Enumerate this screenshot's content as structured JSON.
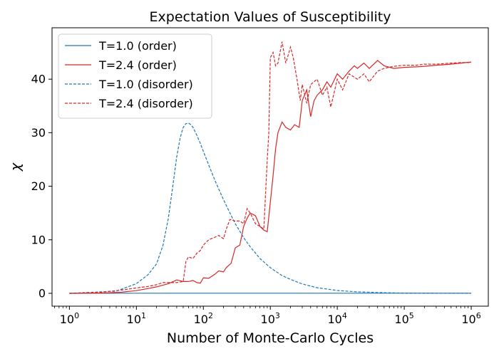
{
  "chart_data": {
    "type": "line",
    "title": "Expectation Values of Susceptibility",
    "xlabel": "Number of Monte-Carlo Cycles",
    "ylabel": "χ",
    "xscale": "log",
    "xlim": [
      0.55,
      1800000
    ],
    "ylim": [
      -2.4,
      49.6
    ],
    "xticks": [
      {
        "value": 1,
        "base": "10",
        "exp": "0"
      },
      {
        "value": 10,
        "base": "10",
        "exp": "1"
      },
      {
        "value": 100,
        "base": "10",
        "exp": "2"
      },
      {
        "value": 1000,
        "base": "10",
        "exp": "3"
      },
      {
        "value": 10000,
        "base": "10",
        "exp": "4"
      },
      {
        "value": 100000,
        "base": "10",
        "exp": "5"
      },
      {
        "value": 1000000,
        "base": "10",
        "exp": "6"
      }
    ],
    "yticks": [
      0,
      10,
      20,
      30,
      40
    ],
    "grid": false,
    "legend_position": "top-left",
    "series": [
      {
        "name": "T=1.0 (order)",
        "color": "#1f77b4",
        "dash": "solid",
        "x": [
          1,
          10,
          100,
          1000,
          10000,
          100000,
          1000000
        ],
        "y": [
          0,
          0.02,
          0.02,
          0.02,
          0.02,
          0.02,
          0.02
        ]
      },
      {
        "name": "T=2.4 (order)",
        "color": "#d62728",
        "dash": "solid",
        "x": [
          1,
          3,
          6,
          10,
          15,
          20,
          30,
          40,
          50,
          60,
          70,
          80,
          90,
          100,
          120,
          150,
          170,
          200,
          220,
          260,
          300,
          350,
          400,
          450,
          500,
          600,
          700,
          800,
          900,
          1000,
          1100,
          1200,
          1300,
          1500,
          1700,
          2000,
          2300,
          2700,
          3000,
          3500,
          4000,
          4500,
          5000,
          6000,
          7000,
          8000,
          10000,
          12000,
          15000,
          18000,
          20000,
          25000,
          30000,
          40000,
          50000,
          70000,
          100000,
          150000,
          200000,
          300000,
          500000,
          700000,
          1000000
        ],
        "y": [
          0,
          0.05,
          0.2,
          0.5,
          0.9,
          1.2,
          1.8,
          2.5,
          2.2,
          2.2,
          2.4,
          2.0,
          1.9,
          2.9,
          2.8,
          3.6,
          4.2,
          4.0,
          4.8,
          5.6,
          8.5,
          9.0,
          12.5,
          14.0,
          15.0,
          14.5,
          12.5,
          11.8,
          11.5,
          17.0,
          22.0,
          27.0,
          30.0,
          32.0,
          31.0,
          30.5,
          31.5,
          31.0,
          36.0,
          38.0,
          33.0,
          36.0,
          37.0,
          38.0,
          39.5,
          38.5,
          41.0,
          40.0,
          41.5,
          42.5,
          42.0,
          43.0,
          42.0,
          43.5,
          42.5,
          42.0,
          42.2,
          42.3,
          42.4,
          42.6,
          42.8,
          43.0,
          43.2
        ]
      },
      {
        "name": "T=1.0 (disorder)",
        "color": "#1f77b4",
        "dash": "dashed",
        "x": [
          1,
          5,
          10,
          15,
          20,
          25,
          30,
          35,
          40,
          45,
          50,
          55,
          60,
          65,
          70,
          80,
          90,
          100,
          120,
          150,
          200,
          250,
          300,
          400,
          500,
          700,
          1000,
          1500,
          2000,
          3000,
          5000,
          10000,
          20000,
          50000,
          100000,
          300000,
          1000000
        ],
        "y": [
          0,
          0.4,
          1.8,
          3.5,
          5.5,
          9.0,
          14.0,
          20.0,
          25.5,
          29.0,
          31.0,
          31.7,
          31.8,
          31.5,
          31.0,
          29.5,
          28.0,
          26.5,
          24.0,
          21.0,
          17.5,
          15.0,
          13.0,
          10.4,
          8.7,
          6.5,
          4.8,
          3.3,
          2.6,
          1.75,
          1.05,
          0.53,
          0.27,
          0.11,
          0.05,
          0.02,
          0.01
        ]
      },
      {
        "name": "T=2.4 (disorder)",
        "color": "#d62728",
        "dash": "dashed",
        "x": [
          1,
          3,
          6,
          10,
          15,
          20,
          25,
          30,
          40,
          50,
          55,
          60,
          70,
          80,
          90,
          100,
          120,
          150,
          170,
          200,
          220,
          250,
          300,
          350,
          400,
          450,
          500,
          600,
          700,
          800,
          900,
          950,
          1000,
          1100,
          1200,
          1300,
          1500,
          1700,
          1800,
          2000,
          2200,
          2500,
          2800,
          3000,
          3500,
          4000,
          5000,
          6000,
          7000,
          8000,
          10000,
          12000,
          15000,
          20000,
          25000,
          30000,
          40000,
          50000,
          70000,
          100000,
          150000,
          200000,
          300000,
          500000,
          700000,
          1000000
        ],
        "y": [
          0,
          0.2,
          0.6,
          1.0,
          1.3,
          1.6,
          2.0,
          2.0,
          2.0,
          2.2,
          6.0,
          6.8,
          6.5,
          7.5,
          8.0,
          9.0,
          10.0,
          10.5,
          10.8,
          10.2,
          12.0,
          13.8,
          13.5,
          13.5,
          13.0,
          15.8,
          15.0,
          13.0,
          12.5,
          12.0,
          25.0,
          30.0,
          44.0,
          45.0,
          42.5,
          43.0,
          47.0,
          43.0,
          44.0,
          46.0,
          44.0,
          40.0,
          36.0,
          39.0,
          35.5,
          39.0,
          40.0,
          37.0,
          38.5,
          34.8,
          40.0,
          38.0,
          41.0,
          40.0,
          41.0,
          39.5,
          41.5,
          42.0,
          42.4,
          42.6,
          42.6,
          42.8,
          42.8,
          43.0,
          43.1,
          43.1
        ]
      }
    ]
  }
}
